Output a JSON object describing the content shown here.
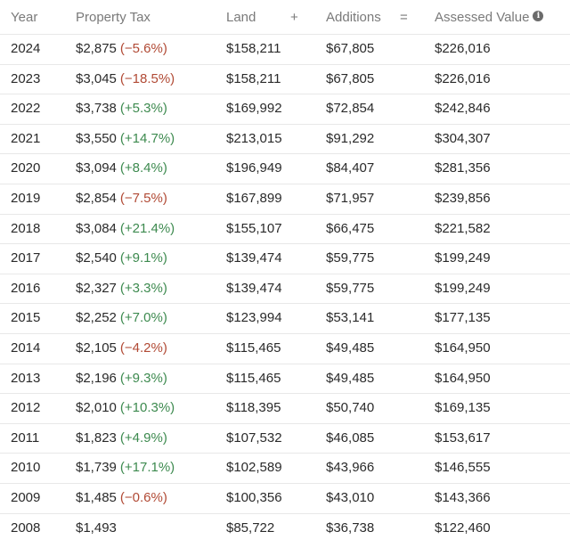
{
  "header": {
    "year": "Year",
    "property_tax": "Property Tax",
    "land": "Land",
    "plus": "+",
    "additions": "Additions",
    "equals": "=",
    "assessed_value": "Assessed Value",
    "info_icon": "info-icon"
  },
  "colors": {
    "increase": "#3d8a4f",
    "decrease": "#b14a35",
    "header_text": "#7a7a7a",
    "row_divider": "#e8e8e8"
  },
  "rows": [
    {
      "year": "2024",
      "tax": "$2,875",
      "change": "(−5.6%)",
      "trend": "down",
      "land": "$158,211",
      "additions": "$67,805",
      "value": "$226,016"
    },
    {
      "year": "2023",
      "tax": "$3,045",
      "change": "(−18.5%)",
      "trend": "down",
      "land": "$158,211",
      "additions": "$67,805",
      "value": "$226,016"
    },
    {
      "year": "2022",
      "tax": "$3,738",
      "change": "(+5.3%)",
      "trend": "up",
      "land": "$169,992",
      "additions": "$72,854",
      "value": "$242,846"
    },
    {
      "year": "2021",
      "tax": "$3,550",
      "change": "(+14.7%)",
      "trend": "up",
      "land": "$213,015",
      "additions": "$91,292",
      "value": "$304,307"
    },
    {
      "year": "2020",
      "tax": "$3,094",
      "change": "(+8.4%)",
      "trend": "up",
      "land": "$196,949",
      "additions": "$84,407",
      "value": "$281,356"
    },
    {
      "year": "2019",
      "tax": "$2,854",
      "change": "(−7.5%)",
      "trend": "down",
      "land": "$167,899",
      "additions": "$71,957",
      "value": "$239,856"
    },
    {
      "year": "2018",
      "tax": "$3,084",
      "change": "(+21.4%)",
      "trend": "up",
      "land": "$155,107",
      "additions": "$66,475",
      "value": "$221,582"
    },
    {
      "year": "2017",
      "tax": "$2,540",
      "change": "(+9.1%)",
      "trend": "up",
      "land": "$139,474",
      "additions": "$59,775",
      "value": "$199,249"
    },
    {
      "year": "2016",
      "tax": "$2,327",
      "change": "(+3.3%)",
      "trend": "up",
      "land": "$139,474",
      "additions": "$59,775",
      "value": "$199,249"
    },
    {
      "year": "2015",
      "tax": "$2,252",
      "change": "(+7.0%)",
      "trend": "up",
      "land": "$123,994",
      "additions": "$53,141",
      "value": "$177,135"
    },
    {
      "year": "2014",
      "tax": "$2,105",
      "change": "(−4.2%)",
      "trend": "down",
      "land": "$115,465",
      "additions": "$49,485",
      "value": "$164,950"
    },
    {
      "year": "2013",
      "tax": "$2,196",
      "change": "(+9.3%)",
      "trend": "up",
      "land": "$115,465",
      "additions": "$49,485",
      "value": "$164,950"
    },
    {
      "year": "2012",
      "tax": "$2,010",
      "change": "(+10.3%)",
      "trend": "up",
      "land": "$118,395",
      "additions": "$50,740",
      "value": "$169,135"
    },
    {
      "year": "2011",
      "tax": "$1,823",
      "change": "(+4.9%)",
      "trend": "up",
      "land": "$107,532",
      "additions": "$46,085",
      "value": "$153,617"
    },
    {
      "year": "2010",
      "tax": "$1,739",
      "change": "(+17.1%)",
      "trend": "up",
      "land": "$102,589",
      "additions": "$43,966",
      "value": "$146,555"
    },
    {
      "year": "2009",
      "tax": "$1,485",
      "change": "(−0.6%)",
      "trend": "down",
      "land": "$100,356",
      "additions": "$43,010",
      "value": "$143,366"
    },
    {
      "year": "2008",
      "tax": "$1,493",
      "change": "",
      "trend": "none",
      "land": "$85,722",
      "additions": "$36,738",
      "value": "$122,460"
    }
  ]
}
